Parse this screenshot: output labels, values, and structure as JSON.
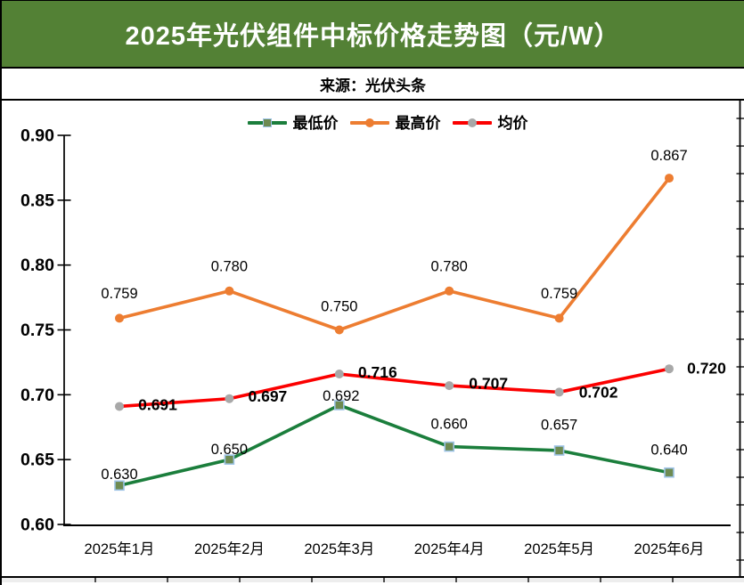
{
  "header": {
    "title": "2025年光伏组件中标价格走势图（元/W）",
    "bg_color": "#538135",
    "text_color": "#FFFFFF"
  },
  "source_bar": {
    "text": "来源：光伏头条"
  },
  "chart_data": {
    "type": "line",
    "title": "2025年光伏组件中标价格走势图（元/W）",
    "categories": [
      "2025年1月",
      "2025年2月",
      "2025年3月",
      "2025年4月",
      "2025年5月",
      "2025年6月"
    ],
    "series": [
      {
        "name": "最低价",
        "color": "#1B7E3C",
        "marker": "square",
        "marker_fill": "#6E8B52",
        "marker_border": "#9DC3E6",
        "values": [
          0.63,
          0.65,
          0.692,
          0.66,
          0.657,
          0.64
        ],
        "labels": [
          "0.630",
          "0.650",
          "0.692",
          "0.660",
          "0.657",
          "0.640"
        ],
        "label_bold": false
      },
      {
        "name": "最高价",
        "color": "#ED7D31",
        "marker": "circle",
        "marker_fill": "#ED7D31",
        "marker_border": "#ED7D31",
        "values": [
          0.759,
          0.78,
          0.75,
          0.78,
          0.759,
          0.867
        ],
        "labels": [
          "0.759",
          "0.780",
          "0.750",
          "0.780",
          "0.759",
          "0.867"
        ],
        "label_bold": false
      },
      {
        "name": "均价",
        "color": "#FB0000",
        "marker": "circle",
        "marker_fill": "#A8A8A8",
        "marker_border": "#A8A8A8",
        "values": [
          0.691,
          0.697,
          0.716,
          0.707,
          0.702,
          0.72
        ],
        "labels": [
          "0.691",
          "0.697",
          "0.716",
          "0.707",
          "0.702",
          "0.720"
        ],
        "label_bold": true
      }
    ],
    "ylim": [
      0.6,
      0.9
    ],
    "y_tick_labels": [
      "0.90",
      "0.85",
      "0.80",
      "0.75",
      "0.70",
      "0.65",
      "0.60"
    ],
    "grid": false,
    "legend_position": "top",
    "axis_color": "#000000"
  }
}
